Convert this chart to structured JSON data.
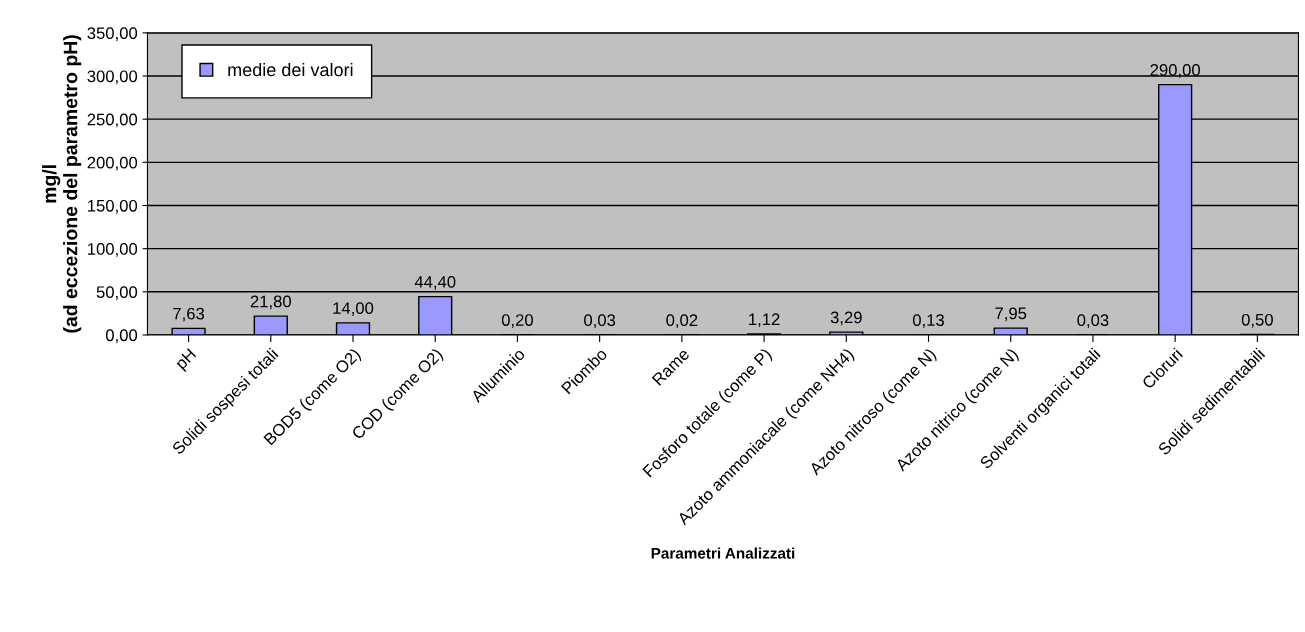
{
  "chart_data": {
    "type": "bar",
    "xlabel": "Parametri Analizzati",
    "ylabel": "mg/l\n(ad eccezione del parametro pH)",
    "categories": [
      "pH",
      "Solidi sospesi totali",
      "BOD5 (come O2)",
      "COD (come O2)",
      "Alluminio",
      "Piombo",
      "Rame",
      "Fosforo totale (come P)",
      "Azoto ammoniacale (come NH4)",
      "Azoto nitroso (come N)",
      "Azoto nitrico (come N)",
      "Solventi organici totali",
      "Cloruri",
      "Solidi sedimentabili"
    ],
    "series": [
      {
        "name": "medie dei valori",
        "color": "#9999ff",
        "values": [
          7.63,
          21.8,
          14.0,
          44.4,
          0.2,
          0.03,
          0.02,
          1.12,
          3.29,
          0.13,
          7.95,
          0.03,
          290.0,
          0.5
        ],
        "value_labels": [
          "7,63",
          "21,80",
          "14,00",
          "44,40",
          "0,20",
          "0,03",
          "0,02",
          "1,12",
          "3,29",
          "0,13",
          "7,95",
          "0,03",
          "290,00",
          "0,50"
        ]
      }
    ],
    "ylim": [
      0,
      350
    ],
    "yticks": [
      {
        "value": 0,
        "label": "0,00"
      },
      {
        "value": 50,
        "label": "50,00"
      },
      {
        "value": 100,
        "label": "100,00"
      },
      {
        "value": 150,
        "label": "150,00"
      },
      {
        "value": 200,
        "label": "200,00"
      },
      {
        "value": 250,
        "label": "250,00"
      },
      {
        "value": 300,
        "label": "300,00"
      },
      {
        "value": 350,
        "label": "350,00"
      }
    ],
    "grid": "y",
    "legend": "top left"
  }
}
